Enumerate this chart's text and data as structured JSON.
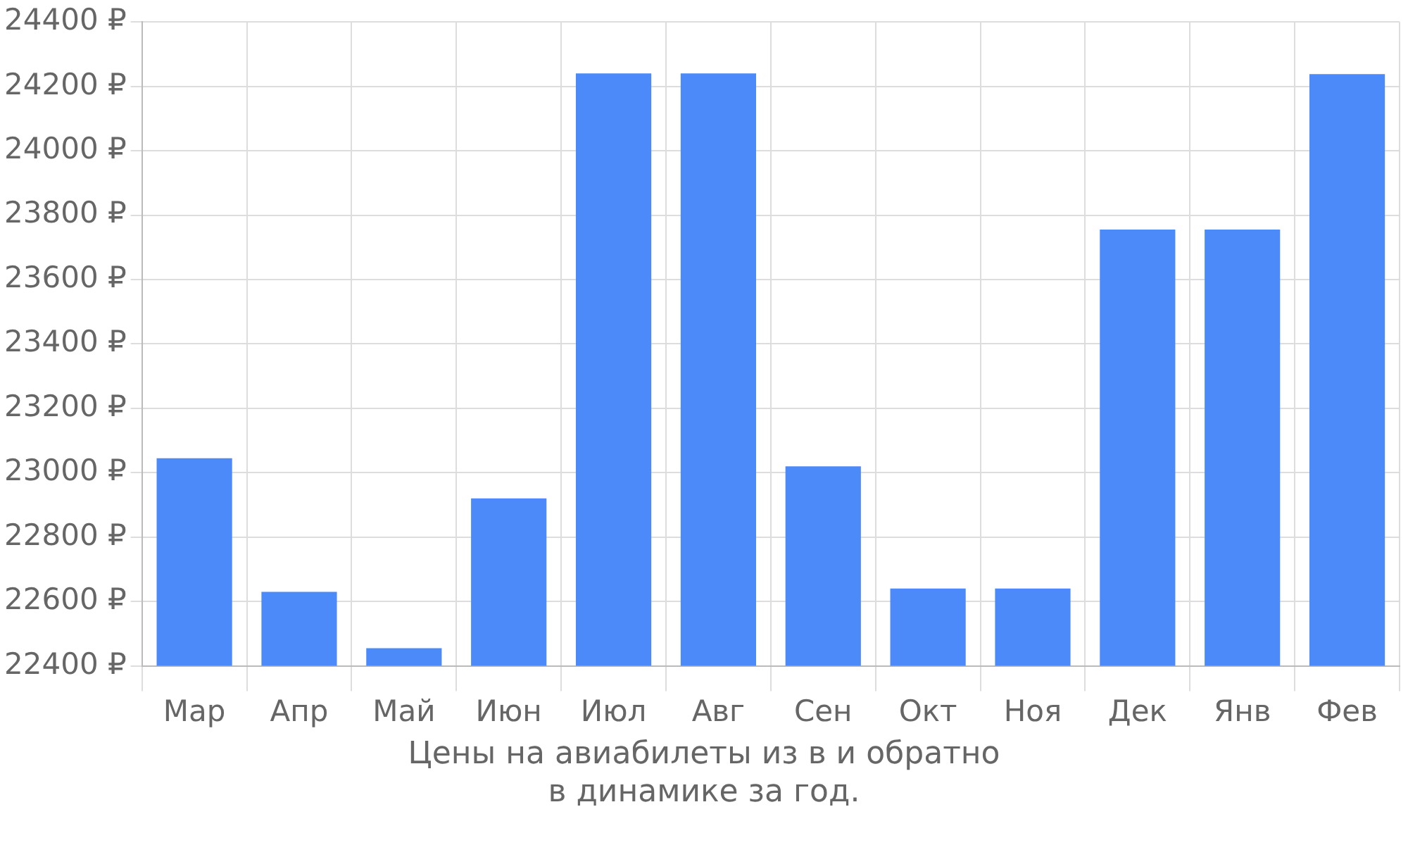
{
  "chart_data": {
    "type": "bar",
    "xlabel": "Цены на авиабилеты из  в  и обратно",
    "annotations": [
      "в динамике за год."
    ],
    "categories": [
      "Мар",
      "Апр",
      "Май",
      "Июн",
      "Июл",
      "Авг",
      "Сен",
      "Окт",
      "Ноя",
      "Дек",
      "Янв",
      "Фев"
    ],
    "values": [
      23045,
      22630,
      22455,
      22920,
      24240,
      24240,
      23020,
      22640,
      22640,
      23755,
      23755,
      24238
    ],
    "color": "#4d8af9",
    "ylim": [
      22400,
      24400
    ],
    "yticks": [
      {
        "value": 22400,
        "label": "22400 ₽"
      },
      {
        "value": 22600,
        "label": "22600 ₽"
      },
      {
        "value": 22800,
        "label": "22800 ₽"
      },
      {
        "value": 23000,
        "label": "23000 ₽"
      },
      {
        "value": 23200,
        "label": "23200 ₽"
      },
      {
        "value": 23400,
        "label": "23400 ₽"
      },
      {
        "value": 23600,
        "label": "23600 ₽"
      },
      {
        "value": 23800,
        "label": "23800 ₽"
      },
      {
        "value": 24000,
        "label": "24000 ₽"
      },
      {
        "value": 24200,
        "label": "24200 ₽"
      },
      {
        "value": 24400,
        "label": "24400 ₽"
      }
    ],
    "grid": true,
    "legend": false
  }
}
